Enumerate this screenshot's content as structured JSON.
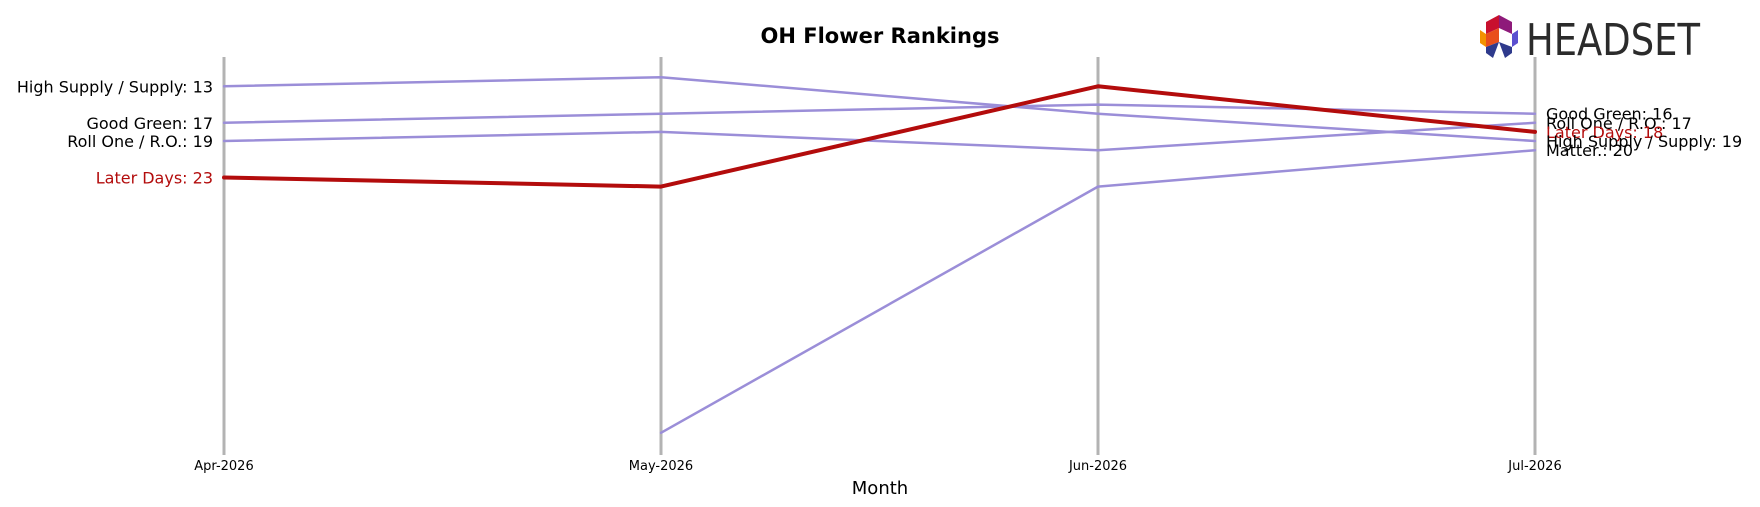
{
  "chart_data": {
    "type": "line",
    "title": "OH Flower Rankings",
    "xlabel": "Month",
    "ylabel": "",
    "categories": [
      "Apr-2026",
      "May-2026",
      "Jun-2026",
      "Jul-2026"
    ],
    "y_axis": {
      "inverted": true,
      "range": [
        10,
        53
      ]
    },
    "grid": false,
    "highlight_color": "#b30c0c",
    "series_color": "#9b8ed8",
    "axis_line_color": "#b3b3b3",
    "series": [
      {
        "name": "High Supply / Supply",
        "values": [
          13,
          12,
          16,
          19
        ],
        "highlight": false
      },
      {
        "name": "Good Green",
        "values": [
          17,
          16,
          15,
          16
        ],
        "highlight": false
      },
      {
        "name": "Roll One / R.O.",
        "values": [
          19,
          18,
          20,
          17
        ],
        "highlight": false
      },
      {
        "name": "Matter.",
        "values": [
          null,
          51,
          24,
          20
        ],
        "highlight": false
      },
      {
        "name": "Later Days",
        "values": [
          23,
          24,
          13,
          18
        ],
        "highlight": true
      }
    ],
    "left_labels": [
      {
        "text": "High Supply / Supply: 13",
        "value": 13,
        "highlight": false
      },
      {
        "text": "Good Green: 17",
        "value": 17,
        "highlight": false
      },
      {
        "text": "Roll One / R.O.: 19",
        "value": 19,
        "highlight": false
      },
      {
        "text": "Later Days: 23",
        "value": 23,
        "highlight": true
      }
    ],
    "right_labels": [
      {
        "text": "Good Green: 16",
        "value": 16,
        "highlight": false
      },
      {
        "text": "Roll One / R.O.: 17",
        "value": 17,
        "highlight": false
      },
      {
        "text": "Later Days: 18",
        "value": 18,
        "highlight": true
      },
      {
        "text": "High Supply / Supply: 19",
        "value": 19,
        "highlight": false
      },
      {
        "text": "Matter.: 20",
        "value": 20,
        "highlight": false
      }
    ]
  },
  "logo": {
    "text": "HEADSET",
    "icon": "headset-hexagon-logo-icon",
    "colors": [
      "#c8102e",
      "#8e1a7a",
      "#e94e1b",
      "#f39200",
      "#2e3a8c",
      "#5a4fcf"
    ]
  }
}
